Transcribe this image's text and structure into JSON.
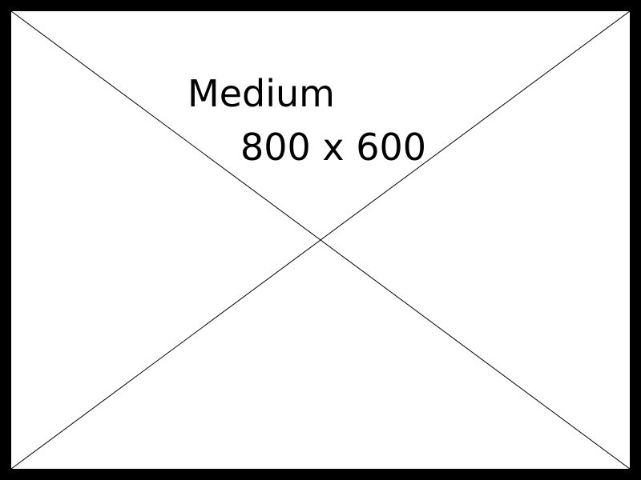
{
  "placeholder": {
    "title": "Medium",
    "size_label": "800 x 600",
    "border_color": "#000000",
    "background_color": "#ffffff",
    "line_color": "#000000"
  }
}
